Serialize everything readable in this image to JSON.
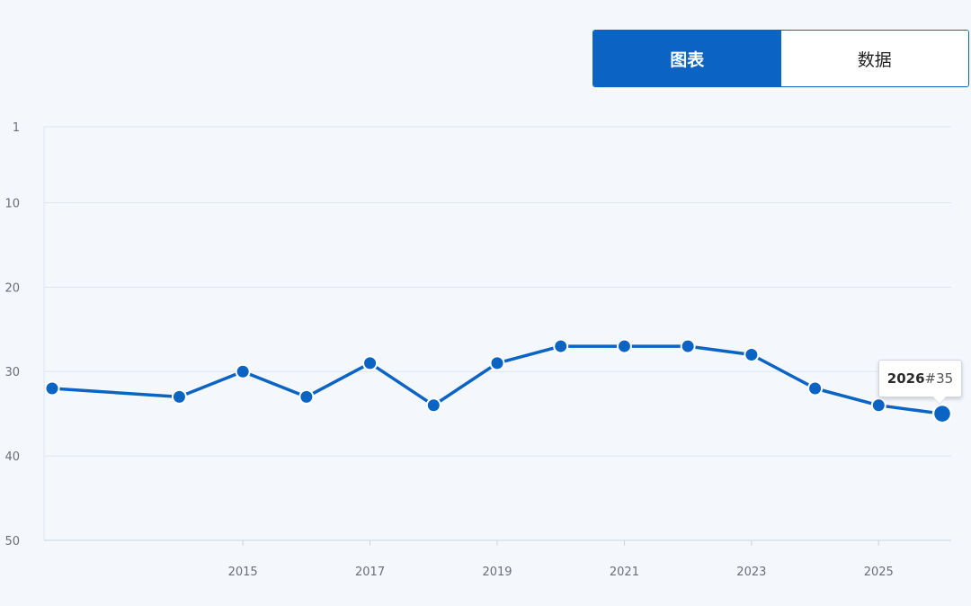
{
  "toggle": {
    "chart_label": "图表",
    "data_label": "数据",
    "active": "chart"
  },
  "tooltip": {
    "year": "2026",
    "rank_text": "#35"
  },
  "colors": {
    "accent": "#0b64c4",
    "grid": "#dfe5ee",
    "background": "#f4f8fd"
  },
  "chart_data": {
    "type": "line",
    "title": "",
    "xlabel": "",
    "ylabel": "",
    "y_inverted": true,
    "ylim": [
      1,
      50
    ],
    "xlim": [
      2012,
      2026
    ],
    "y_ticks": [
      "1",
      "10",
      "20",
      "30",
      "40",
      "50"
    ],
    "y_tick_values": [
      1,
      10,
      20,
      30,
      40,
      50
    ],
    "x_ticks": [
      "2015",
      "2017",
      "2019",
      "2021",
      "2023",
      "2025"
    ],
    "x_tick_values": [
      2015,
      2017,
      2019,
      2021,
      2023,
      2025
    ],
    "grid": true,
    "series": [
      {
        "x": [
          2012,
          2014,
          2015,
          2016,
          2017,
          2018,
          2019,
          2020,
          2021,
          2022,
          2023,
          2024,
          2025,
          2026
        ],
        "values": [
          32,
          33,
          30,
          33,
          29,
          34,
          29,
          27,
          27,
          27,
          28,
          32,
          34,
          35
        ]
      }
    ],
    "highlighted_x": 2026
  }
}
